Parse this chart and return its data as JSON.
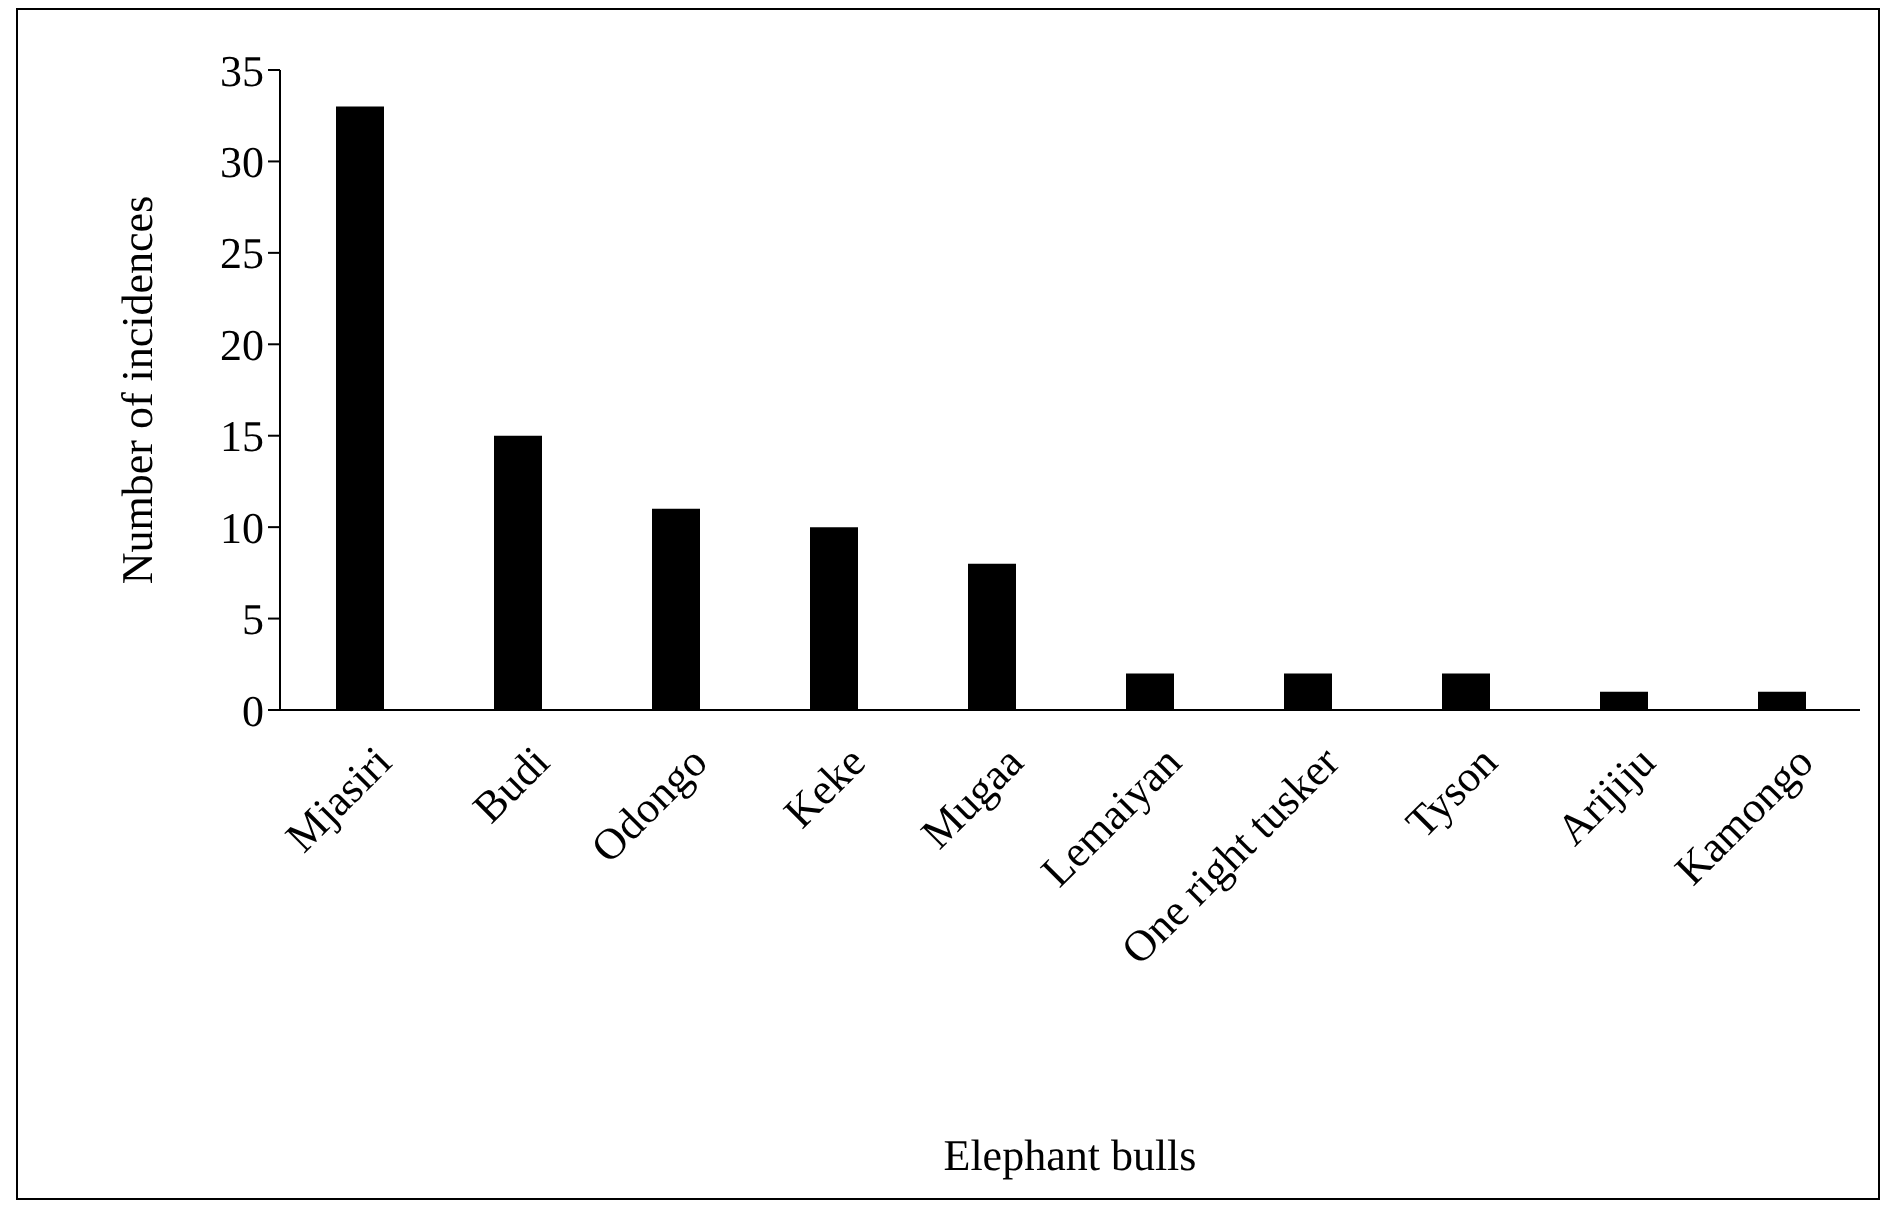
{
  "chart_data": {
    "type": "bar",
    "xlabel": "Elephant bulls",
    "ylabel": "Number of incidences",
    "categories": [
      "Mjasiri",
      "Budi",
      "Odongo",
      "Keke",
      "Mugaa",
      "Lemaiyan",
      "One right tusker",
      "Tyson",
      "Arijiju",
      "Kamongo"
    ],
    "values": [
      33,
      15,
      11,
      10,
      8,
      2,
      2,
      2,
      1,
      1
    ],
    "color": "#000000",
    "ylim": [
      0,
      35
    ],
    "yticks": [
      0,
      5,
      10,
      15,
      20,
      25,
      30,
      35
    ]
  }
}
